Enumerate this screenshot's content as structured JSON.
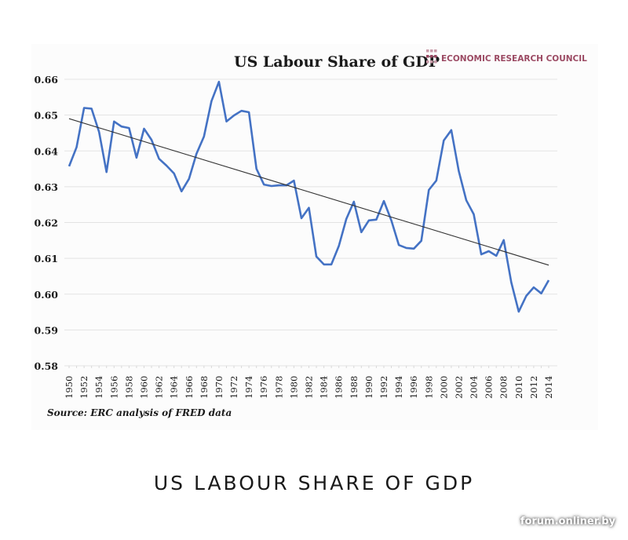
{
  "chart_data": {
    "type": "line",
    "title": "US Labour Share of GDP",
    "brand": "ECONOMIC RESEARCH COUNCIL",
    "source": "Source: ERC analysis of FRED data",
    "xlabel": "",
    "ylabel": "",
    "ylim": [
      0.58,
      0.66
    ],
    "xlim": [
      1950,
      2014
    ],
    "yticks": [
      "0.66",
      "0.65",
      "0.64",
      "0.63",
      "0.62",
      "0.61",
      "0.60",
      "0.59",
      "0.58"
    ],
    "ytick_values": [
      0.66,
      0.65,
      0.64,
      0.63,
      0.62,
      0.61,
      0.6,
      0.59,
      0.58
    ],
    "xticks": [
      "1950",
      "1952",
      "1954",
      "1956",
      "1958",
      "1960",
      "1962",
      "1964",
      "1966",
      "1968",
      "1970",
      "1972",
      "1974",
      "1976",
      "1978",
      "1980",
      "1982",
      "1984",
      "1986",
      "1988",
      "1990",
      "1992",
      "1994",
      "1996",
      "1998",
      "2000",
      "2002",
      "2004",
      "2006",
      "2008",
      "2010",
      "2012",
      "2014"
    ],
    "grid": true,
    "legend": "none",
    "series": [
      {
        "name": "US Labour Share of GDP",
        "color": "#4472c4",
        "x": [
          1950,
          1951,
          1952,
          1953,
          1954,
          1955,
          1956,
          1957,
          1958,
          1959,
          1960,
          1961,
          1962,
          1963,
          1964,
          1965,
          1966,
          1967,
          1968,
          1969,
          1970,
          1971,
          1972,
          1973,
          1974,
          1975,
          1976,
          1977,
          1978,
          1979,
          1980,
          1981,
          1982,
          1983,
          1984,
          1985,
          1986,
          1987,
          1988,
          1989,
          1990,
          1991,
          1992,
          1993,
          1994,
          1995,
          1996,
          1997,
          1998,
          1999,
          2000,
          2001,
          2002,
          2003,
          2004,
          2005,
          2006,
          2007,
          2008,
          2009,
          2010,
          2011,
          2012,
          2013,
          2014
        ],
        "values": [
          0.6357,
          0.641,
          0.652,
          0.6518,
          0.6453,
          0.6341,
          0.6482,
          0.6468,
          0.6464,
          0.6381,
          0.6462,
          0.6431,
          0.6378,
          0.6359,
          0.6337,
          0.6287,
          0.6322,
          0.6392,
          0.644,
          0.6539,
          0.6593,
          0.6482,
          0.6499,
          0.6512,
          0.6508,
          0.635,
          0.6306,
          0.6302,
          0.6304,
          0.6304,
          0.6317,
          0.6212,
          0.6241,
          0.6105,
          0.6083,
          0.6083,
          0.6135,
          0.621,
          0.6258,
          0.6173,
          0.6206,
          0.6208,
          0.626,
          0.6206,
          0.6137,
          0.6129,
          0.6127,
          0.6149,
          0.6291,
          0.6317,
          0.6429,
          0.6458,
          0.6344,
          0.6262,
          0.6223,
          0.6111,
          0.612,
          0.6107,
          0.6151,
          0.6033,
          0.5951,
          0.5995,
          0.6019,
          0.6002,
          0.6039
        ]
      },
      {
        "name": "Linear trend",
        "color": "#333333",
        "x": [
          1950,
          2014
        ],
        "values": [
          0.649,
          0.6081
        ]
      }
    ]
  },
  "page": {
    "caption": "US LABOUR SHARE OF GDP",
    "watermark": "forum.onliner.by"
  },
  "colors": {
    "line": "#4472c4",
    "trend": "#333333",
    "brand": "#9b4a63",
    "brand_grid": "#c89aa8",
    "grid": "#e3e3e3"
  }
}
